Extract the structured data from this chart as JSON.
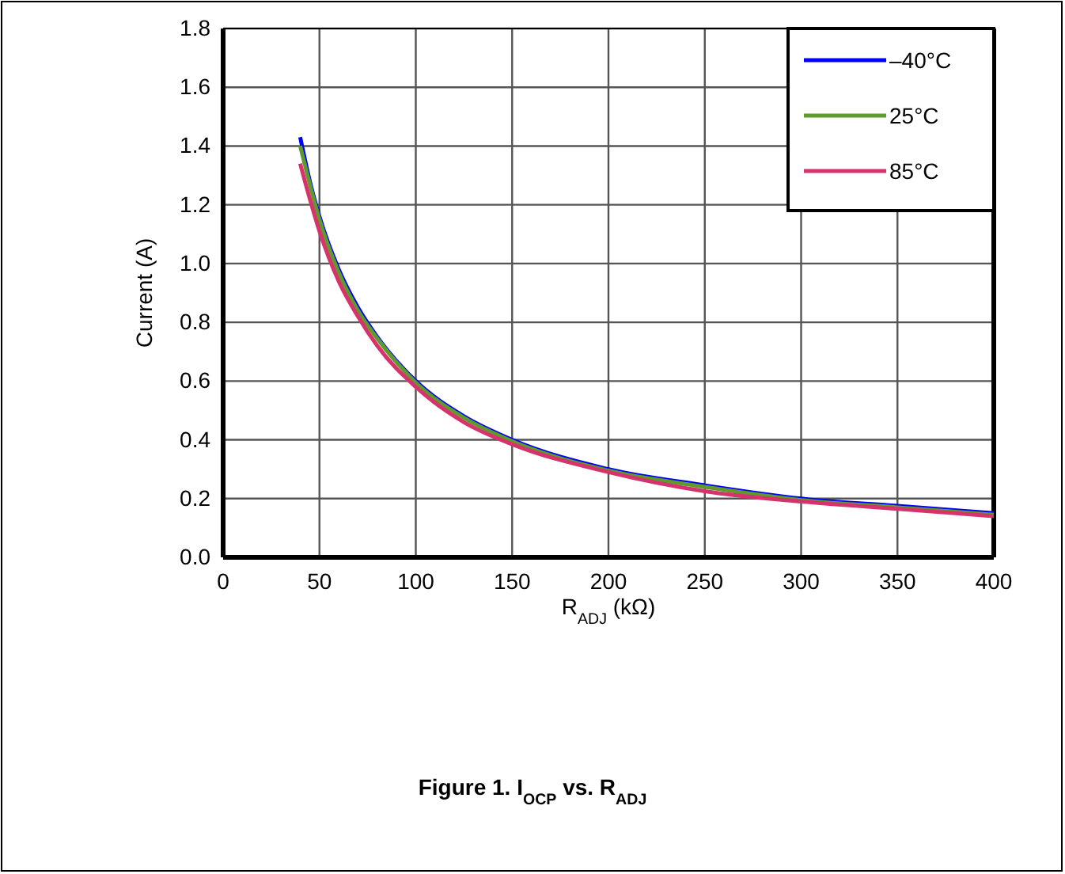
{
  "chart_data": {
    "type": "line",
    "title": "Figure 1. I$_{OCP}$ vs. R$_{ADJ}$",
    "xlabel": "R$_{ADJ}$ (kΩ)",
    "ylabel": "Current (A)",
    "x": [
      40,
      45,
      50,
      60,
      70,
      80,
      100,
      125,
      150,
      200,
      250,
      300,
      350,
      400
    ],
    "series": [
      {
        "name": "–40°C",
        "color": "#0000ff",
        "values": [
          1.43,
          1.28,
          1.16,
          0.98,
          0.85,
          0.75,
          0.6,
          0.48,
          0.4,
          0.3,
          0.245,
          0.2,
          0.175,
          0.15
        ]
      },
      {
        "name": "25°C",
        "color": "#5f9a2f",
        "values": [
          1.4,
          1.27,
          1.15,
          0.97,
          0.84,
          0.745,
          0.595,
          0.475,
          0.395,
          0.295,
          0.24,
          0.195,
          0.17,
          0.145
        ]
      },
      {
        "name": "85°C",
        "color": "#d6336c",
        "values": [
          1.34,
          1.22,
          1.11,
          0.94,
          0.82,
          0.72,
          0.58,
          0.46,
          0.385,
          0.29,
          0.225,
          0.19,
          0.165,
          0.14
        ]
      }
    ],
    "xlim": [
      0,
      400
    ],
    "xticks": [
      0,
      50,
      100,
      150,
      200,
      250,
      300,
      350,
      400
    ],
    "ylim": [
      0,
      1.8
    ],
    "yticks": [
      {
        "value": 0,
        "label": "0.0"
      },
      {
        "value": 0.2,
        "label": "0.2"
      },
      {
        "value": 0.4,
        "label": "0.4"
      },
      {
        "value": 0.6,
        "label": "0.6"
      },
      {
        "value": 0.8,
        "label": "0.8"
      },
      {
        "value": 1,
        "label": "1.0"
      },
      {
        "value": 1.2,
        "label": "1.2"
      },
      {
        "value": 1.4,
        "label": "1.4"
      },
      {
        "value": 1.6,
        "label": "1.6"
      },
      {
        "value": 1.8,
        "label": "1.8"
      }
    ],
    "grid": true,
    "legend": "top right",
    "marker": "none",
    "line_style": "solid"
  }
}
